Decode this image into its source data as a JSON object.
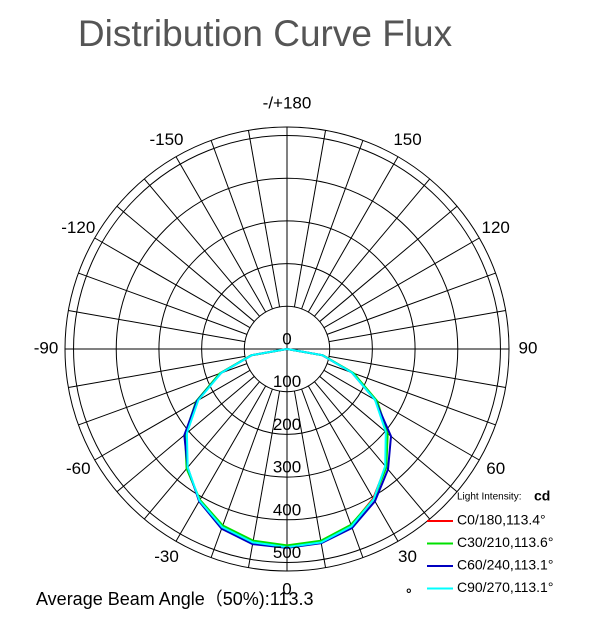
{
  "chart_data": {
    "type": "polar",
    "title": "Distribution Curve Flux",
    "theta": [
      -90,
      -80,
      -70,
      -60,
      -50,
      -40,
      -30,
      -20,
      -10,
      0,
      10,
      20,
      30,
      40,
      50,
      60,
      70,
      80,
      90
    ],
    "series": [
      {
        "name": "C0/180,113.4°",
        "color": "#ff0000",
        "values": [
          0,
          85,
          166,
          242,
          308,
          364,
          410,
          442,
          458,
          462,
          458,
          440,
          404,
          360,
          304,
          240,
          164,
          84,
          0
        ]
      },
      {
        "name": "C30/210,113.6°",
        "color": "#00e000",
        "values": [
          0,
          86,
          168,
          246,
          312,
          366,
          408,
          440,
          456,
          460,
          456,
          438,
          406,
          362,
          308,
          244,
          166,
          86,
          0
        ]
      },
      {
        "name": "C60/240,113.1°",
        "color": "#0000c0",
        "values": [
          0,
          84,
          164,
          244,
          314,
          362,
          412,
          448,
          464,
          466,
          462,
          446,
          412,
          368,
          318,
          238,
          162,
          84,
          0
        ]
      },
      {
        "name": "C90/270,113.1°",
        "color": "#00ffff",
        "values": [
          0,
          84,
          164,
          240,
          306,
          362,
          410,
          444,
          460,
          464,
          460,
          442,
          406,
          358,
          302,
          238,
          162,
          84,
          0
        ]
      }
    ],
    "rlim": [
      0,
      520
    ],
    "rticks": [
      0,
      100,
      200,
      300,
      400,
      500
    ],
    "thetaticks": [
      0,
      30,
      60,
      90,
      120,
      150,
      {
        "value": 180,
        "label": "-/+180"
      },
      -150,
      -120,
      -90,
      -60,
      -30
    ],
    "legend_title": "Light Intensity:",
    "legend_unit": "cd",
    "footer": "Average Beam Angle（50%):113.3",
    "footer_unit": "°"
  }
}
